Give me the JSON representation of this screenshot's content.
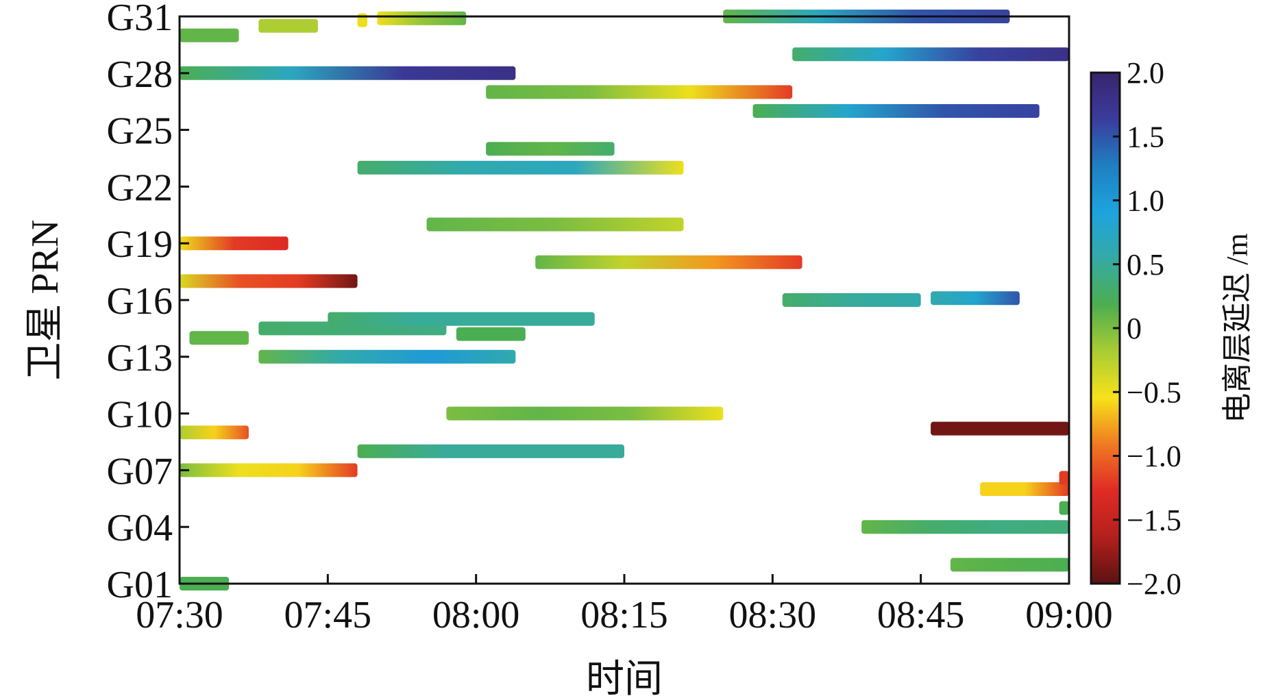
{
  "chart_data": {
    "type": "heatmap",
    "title": "",
    "xlabel": "时间",
    "ylabel": "卫星 PRN",
    "x_ticks": [
      "07:30",
      "07:45",
      "08:00",
      "08:15",
      "08:30",
      "08:45",
      "09:00"
    ],
    "xlim": [
      "07:30",
      "09:00"
    ],
    "y_ticks": [
      "G01",
      "G04",
      "G07",
      "G10",
      "G13",
      "G16",
      "G19",
      "G22",
      "G25",
      "G28",
      "G31"
    ],
    "ylim": [
      1,
      31
    ],
    "colorbar": {
      "label": "电离层延迟 /m",
      "range": [
        -2.0,
        2.0
      ],
      "ticks": [
        "2.0",
        "1.5",
        "1.0",
        "0.5",
        "0",
        "−0.5",
        "−1.0",
        "−1.5",
        "−2.0"
      ],
      "colors": [
        "#5a1212",
        "#b3201c",
        "#e02b25",
        "#f07a22",
        "#f7e21a",
        "#a9cc33",
        "#4dae4f",
        "#35aaa6",
        "#1da3de",
        "#1f7fc2",
        "#3a3c9c",
        "#39246e"
      ]
    },
    "grid": false,
    "series": [
      {
        "prn": "G01",
        "start": "07:30",
        "end": "07:35",
        "values": [
          0.2,
          0.2
        ]
      },
      {
        "prn": "G02",
        "start": "08:48",
        "end": "09:00",
        "values": [
          0.1,
          0.15,
          0.2
        ]
      },
      {
        "prn": "G04",
        "start": "08:39",
        "end": "09:00",
        "values": [
          0.1,
          0.3,
          0.4,
          0.35
        ]
      },
      {
        "prn": "G05",
        "start": "08:59",
        "end": "09:00",
        "values": [
          0.2,
          0.2
        ]
      },
      {
        "prn": "G06",
        "start": "08:51",
        "end": "09:00",
        "values": [
          -0.6,
          -0.6,
          -1.2
        ]
      },
      {
        "prn": "G06.6",
        "start": "08:59",
        "end": "09:00",
        "values": [
          -1.2,
          -1.2
        ]
      },
      {
        "prn": "G07",
        "start": "07:30",
        "end": "07:48",
        "values": [
          0.0,
          -0.5,
          -0.6,
          -1.2
        ]
      },
      {
        "prn": "G08",
        "start": "07:48",
        "end": "08:15",
        "values": [
          0.2,
          0.5,
          0.5,
          0.5
        ]
      },
      {
        "prn": "G09",
        "start": "07:30",
        "end": "07:37",
        "values": [
          -0.2,
          -0.6,
          -1.1
        ]
      },
      {
        "prn": "G09.2",
        "start": "08:46",
        "end": "09:00",
        "values": [
          -1.9,
          -1.9
        ]
      },
      {
        "prn": "G10",
        "start": "07:57",
        "end": "08:25",
        "values": [
          0.0,
          0.1,
          0.0,
          -0.5
        ]
      },
      {
        "prn": "G13",
        "start": "07:38",
        "end": "08:04",
        "values": [
          0.1,
          0.6,
          1.0,
          0.6
        ]
      },
      {
        "prn": "G14",
        "start": "07:31",
        "end": "07:37",
        "values": [
          0.1,
          0.1
        ]
      },
      {
        "prn": "G14.5",
        "start": "07:38",
        "end": "07:57",
        "values": [
          0.3,
          0.4
        ]
      },
      {
        "prn": "G14.2",
        "start": "07:58",
        "end": "08:05",
        "values": [
          0.2,
          0.2
        ]
      },
      {
        "prn": "G15",
        "start": "07:45",
        "end": "08:12",
        "values": [
          0.3,
          0.5,
          0.5,
          0.5
        ]
      },
      {
        "prn": "G16",
        "start": "08:31",
        "end": "08:45",
        "values": [
          0.3,
          0.5,
          0.6
        ]
      },
      {
        "prn": "G16.1",
        "start": "08:46",
        "end": "08:55",
        "values": [
          0.6,
          0.8,
          1.5
        ]
      },
      {
        "prn": "G17",
        "start": "07:30",
        "end": "07:48",
        "values": [
          -0.4,
          -1.1,
          -1.2,
          -1.9
        ]
      },
      {
        "prn": "G18",
        "start": "08:06",
        "end": "08:33",
        "values": [
          0.1,
          -0.3,
          -0.8,
          -1.2
        ]
      },
      {
        "prn": "G19",
        "start": "07:30",
        "end": "07:41",
        "values": [
          -0.5,
          -1.2,
          -1.3
        ]
      },
      {
        "prn": "G20",
        "start": "07:55",
        "end": "08:21",
        "values": [
          0.1,
          0.0,
          -0.3
        ]
      },
      {
        "prn": "G23",
        "start": "07:48",
        "end": "08:21",
        "values": [
          0.3,
          0.6,
          0.7,
          -0.5
        ]
      },
      {
        "prn": "G24",
        "start": "08:01",
        "end": "08:14",
        "values": [
          0.2,
          0.1,
          0.3
        ]
      },
      {
        "prn": "G26",
        "start": "08:28",
        "end": "08:57",
        "values": [
          0.2,
          0.8,
          1.5,
          1.6
        ]
      },
      {
        "prn": "G27",
        "start": "08:01",
        "end": "08:32",
        "values": [
          0.1,
          0.0,
          -0.5,
          -1.2
        ]
      },
      {
        "prn": "G28",
        "start": "07:30",
        "end": "08:04",
        "values": [
          0.2,
          0.7,
          1.7,
          1.8
        ]
      },
      {
        "prn": "G29",
        "start": "08:32",
        "end": "09:00",
        "values": [
          0.3,
          0.8,
          1.6,
          1.8
        ]
      },
      {
        "prn": "G30",
        "start": "07:30",
        "end": "07:36",
        "values": [
          0.1,
          0.1
        ]
      },
      {
        "prn": "G30.5",
        "start": "07:38",
        "end": "07:44",
        "values": [
          -0.2,
          -0.2
        ]
      },
      {
        "prn": "G30.8",
        "start": "07:48",
        "end": "07:49",
        "values": [
          -0.5,
          -0.5
        ]
      },
      {
        "prn": "G30.9",
        "start": "07:50",
        "end": "07:59",
        "values": [
          -0.5,
          -0.1,
          0.1
        ]
      },
      {
        "prn": "G31",
        "start": "08:25",
        "end": "08:54",
        "values": [
          0.1,
          0.7,
          1.5,
          1.6
        ]
      }
    ]
  }
}
